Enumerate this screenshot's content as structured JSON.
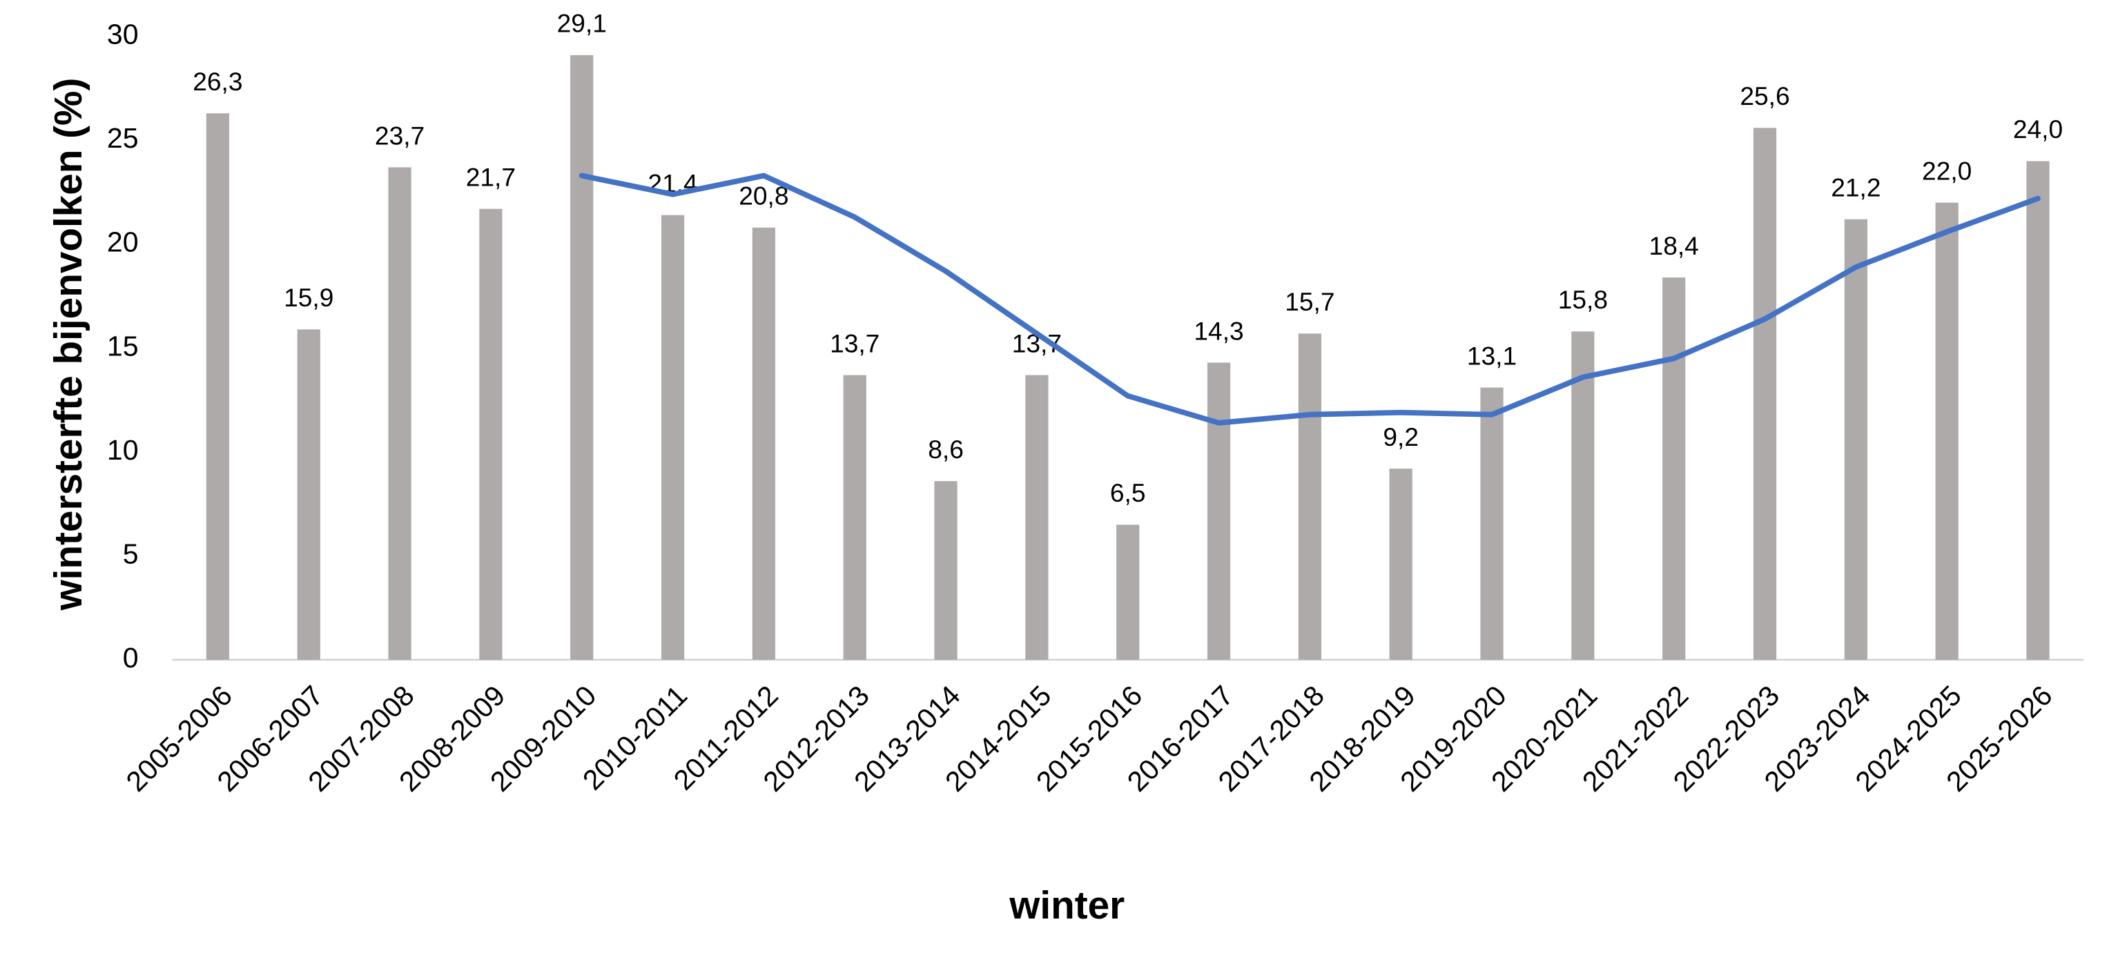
{
  "chart_data": {
    "type": "bar",
    "x_label": "winter",
    "y_label": "wintersterfte bijenvolken (%)",
    "categories": [
      "2005-2006",
      "2006-2007",
      "2007-2008",
      "2008-2009",
      "2009-2010",
      "2010-2011",
      "2011-2012",
      "2012-2013",
      "2013-2014",
      "2014-2015",
      "2015-2016",
      "2016-2017",
      "2017-2018",
      "2018-2019",
      "2019-2020",
      "2020-2021",
      "2021-2022",
      "2022-2023",
      "2023-2024",
      "2024-2025",
      "2025-2026"
    ],
    "series": [
      {
        "type": "bar",
        "color": "#aeaaaa",
        "values": [
          26.3,
          15.9,
          23.7,
          21.7,
          29.1,
          21.4,
          20.8,
          13.7,
          8.6,
          13.7,
          6.5,
          14.3,
          15.7,
          9.2,
          13.1,
          15.8,
          18.4,
          25.6,
          21.2,
          22.0,
          24.0
        ],
        "value_labels": [
          "26,3",
          "15,9",
          "23,7",
          "21,7",
          "29,1",
          "21,4",
          "20,8",
          "13,7",
          "8,6",
          "13,7",
          "6,5",
          "14,3",
          "15,7",
          "9,2",
          "13,1",
          "15,8",
          "18,4",
          "25,6",
          "21,2",
          "22,0",
          "24,0"
        ]
      },
      {
        "type": "line",
        "color": "#4472c4",
        "values": [
          null,
          null,
          null,
          null,
          23.3,
          22.4,
          23.3,
          21.3,
          18.7,
          15.7,
          12.7,
          11.4,
          11.8,
          11.9,
          11.8,
          13.6,
          14.5,
          16.4,
          18.9,
          20.6,
          22.2
        ]
      }
    ],
    "ylim": [
      0,
      30
    ],
    "yticks": [
      0,
      5,
      10,
      15,
      20,
      25,
      30
    ],
    "grid": false
  }
}
